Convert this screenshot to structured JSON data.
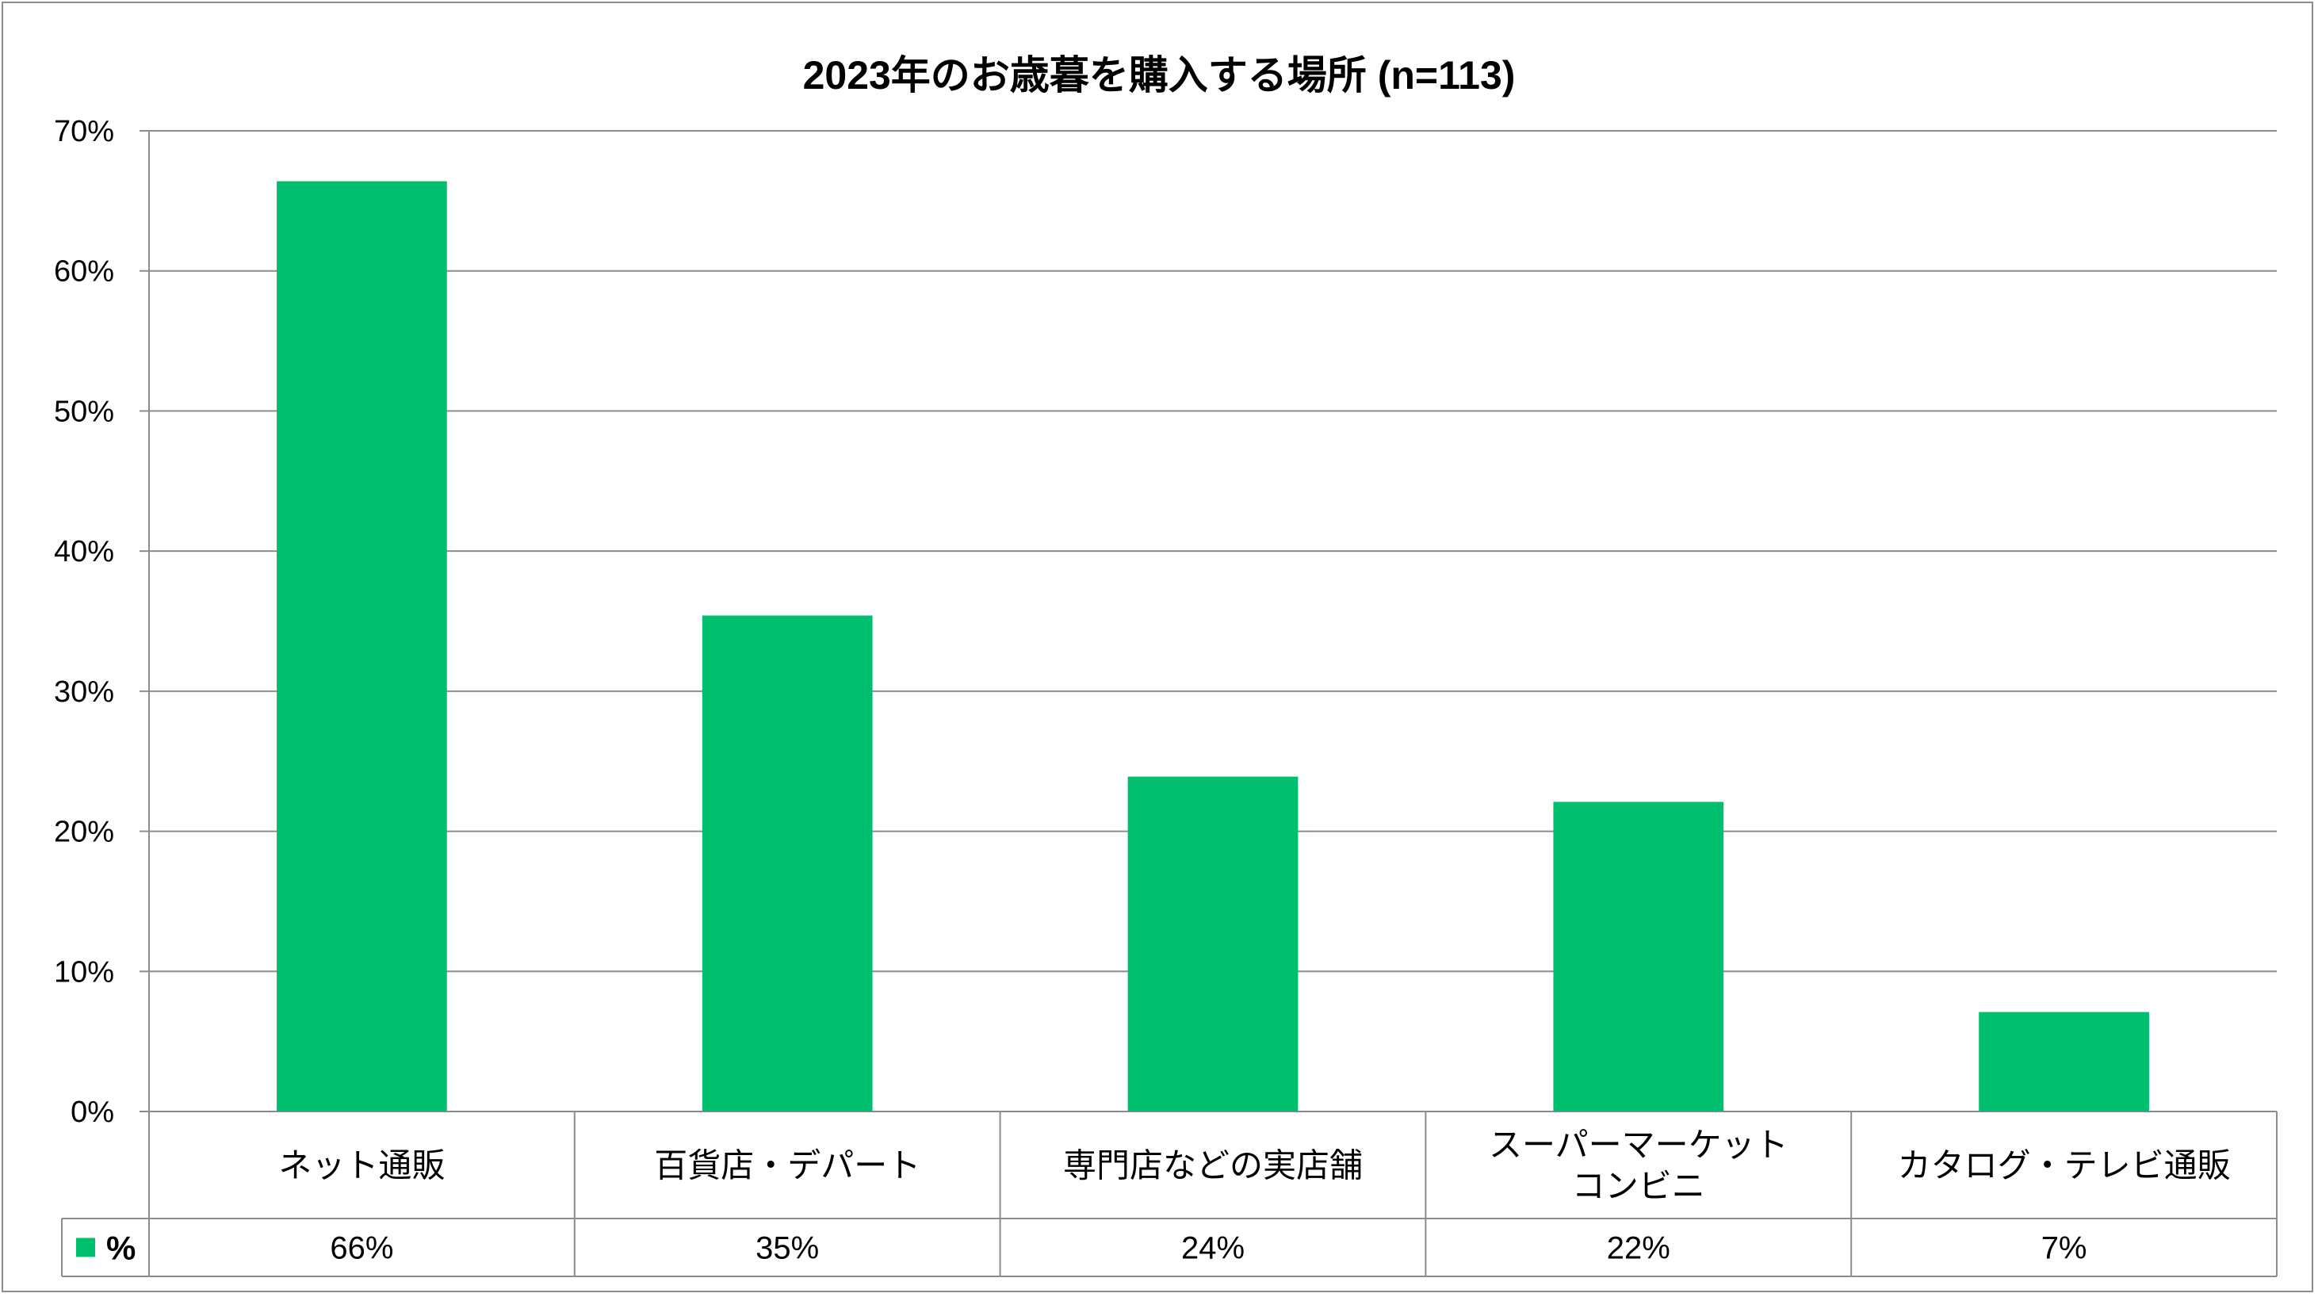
{
  "chart_data": {
    "type": "bar",
    "title": "2023年のお歳暮を購入する場所 (n=113)",
    "categories": [
      [
        "ネット通販"
      ],
      [
        "百貨店・デパート"
      ],
      [
        "専門店などの実店舗"
      ],
      [
        "スーパーマーケット",
        "コンビニ"
      ],
      [
        "カタログ・テレビ通販"
      ]
    ],
    "series": [
      {
        "name": "%",
        "values": [
          66.4,
          35.4,
          23.9,
          22.1,
          7.1
        ],
        "labels": [
          "66%",
          "35%",
          "24%",
          "22%",
          "7%"
        ],
        "color": "#00bf6f"
      }
    ],
    "ylim": [
      0,
      70
    ],
    "yticks": [
      0,
      10,
      20,
      30,
      40,
      50,
      60,
      70
    ],
    "ytick_labels": [
      "0%",
      "10%",
      "20%",
      "30%",
      "40%",
      "50%",
      "60%",
      "70%"
    ],
    "grid": true,
    "data_table": true
  }
}
